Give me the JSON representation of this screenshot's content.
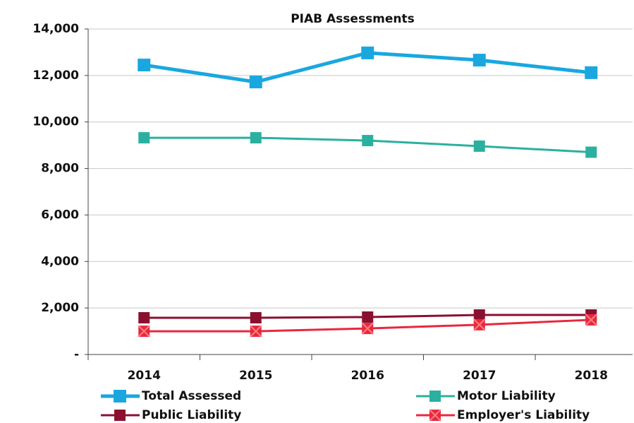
{
  "chart_data": {
    "type": "line",
    "title": "PIAB Assessments",
    "categories": [
      "2014",
      "2015",
      "2016",
      "2017",
      "2018"
    ],
    "series": [
      {
        "name": "Total Assessed",
        "color": "#1aa7e0",
        "marker": "square",
        "values": [
          12450,
          11720,
          12970,
          12660,
          12120
        ]
      },
      {
        "name": "Motor Liability",
        "color": "#2bb0a0",
        "marker": "square",
        "values": [
          9320,
          9320,
          9200,
          8960,
          8700
        ]
      },
      {
        "name": "Public Liability",
        "color": "#8b1030",
        "marker": "square",
        "values": [
          1580,
          1580,
          1610,
          1700,
          1700
        ]
      },
      {
        "name": "Employer's Liability",
        "color": "#e8283f",
        "marker": "x-square",
        "values": [
          1000,
          1000,
          1120,
          1280,
          1490
        ]
      }
    ],
    "ylim": [
      0,
      14000
    ],
    "yticks": [
      {
        "value": 0,
        "label": "-"
      },
      {
        "value": 2000,
        "label": "2,000"
      },
      {
        "value": 4000,
        "label": "4,000"
      },
      {
        "value": 6000,
        "label": "6,000"
      },
      {
        "value": 8000,
        "label": "8,000"
      },
      {
        "value": 10000,
        "label": "10,000"
      },
      {
        "value": 12000,
        "label": "12,000"
      },
      {
        "value": 14000,
        "label": "14,000"
      }
    ],
    "grid": true,
    "legend": "bottom"
  }
}
